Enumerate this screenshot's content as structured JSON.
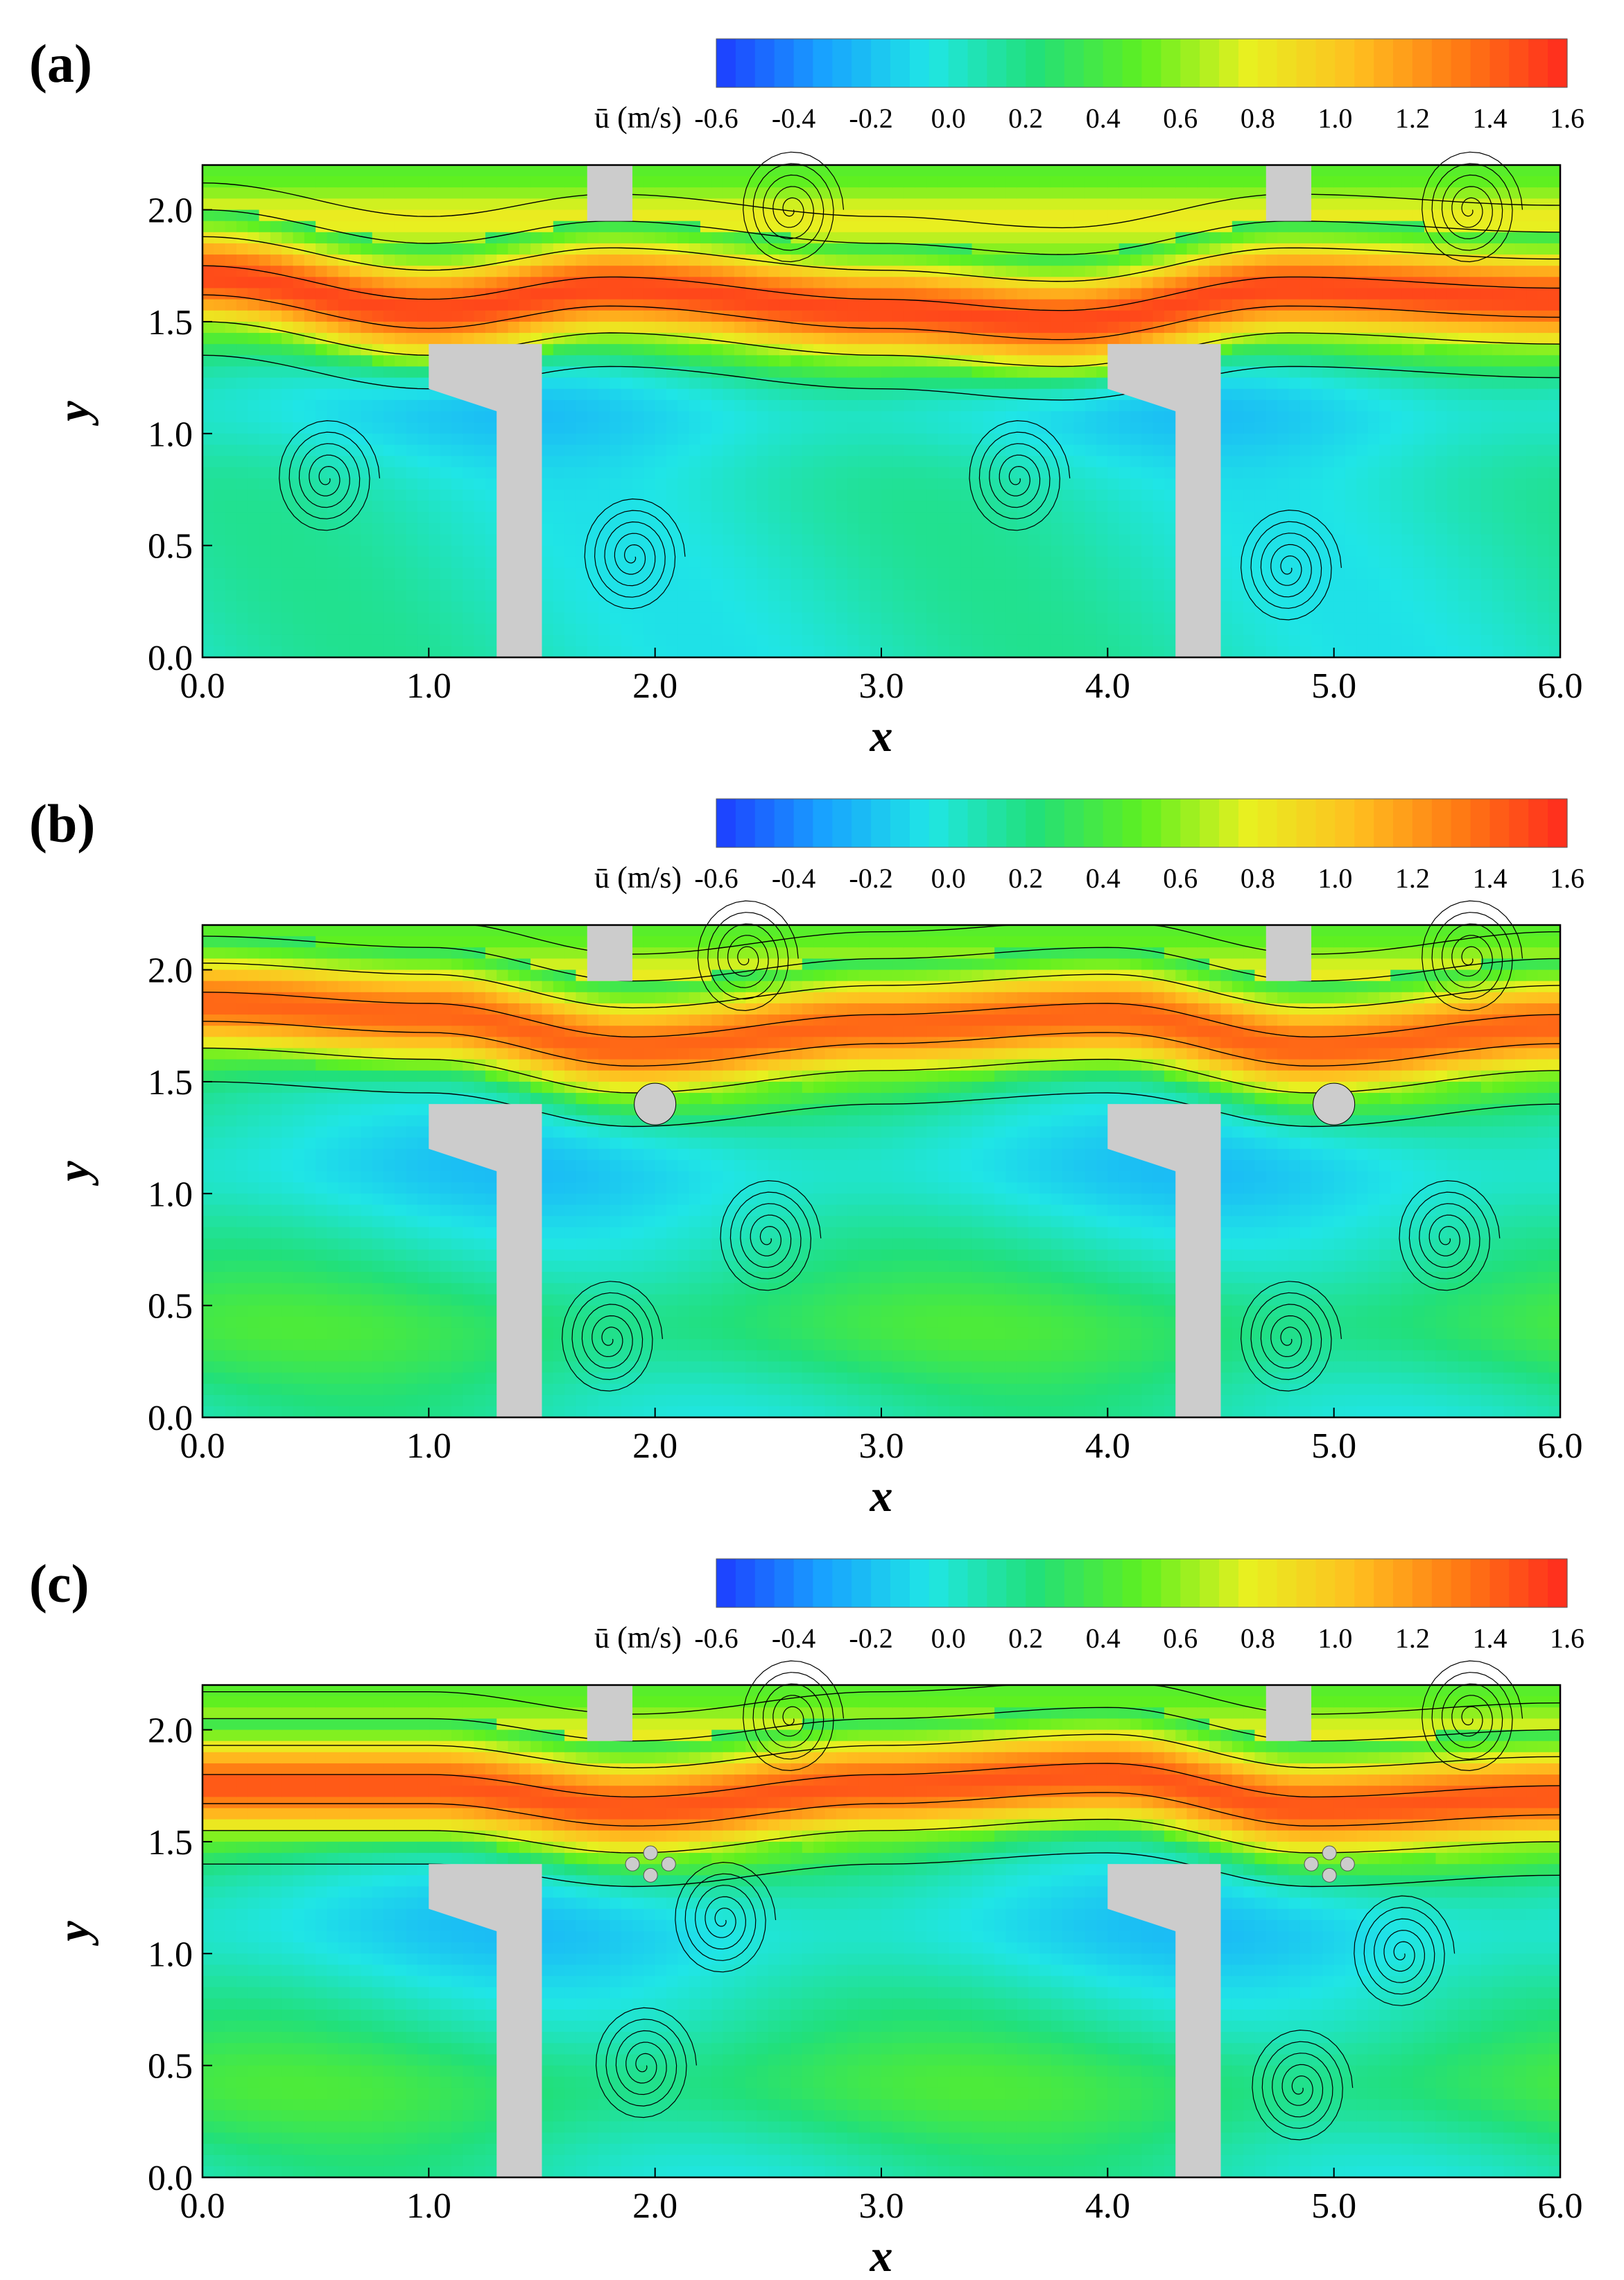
{
  "chart_data": [
    {
      "type": "heatmap",
      "panel_label": "(a)",
      "xlabel": "x",
      "ylabel": "y",
      "xlim": [
        0.0,
        6.0
      ],
      "ylim": [
        0.0,
        2.2
      ],
      "xticks": [
        "0.0",
        "1.0",
        "2.0",
        "3.0",
        "4.0",
        "5.0",
        "6.0"
      ],
      "yticks": [
        "0.0",
        "0.5",
        "1.0",
        "1.5",
        "2.0"
      ],
      "colorbar": {
        "label": "ū (m/s)",
        "range": [
          -0.6,
          1.6
        ],
        "ticks": [
          "-0.6",
          "-0.4",
          "-0.2",
          "0.0",
          "0.2",
          "0.4",
          "0.6",
          "0.8",
          "1.0",
          "1.2",
          "1.4",
          "1.6"
        ],
        "colormap": [
          "#1e3cff",
          "#18a2ff",
          "#20e6e6",
          "#22e07a",
          "#5ff020",
          "#e8f020",
          "#ffc020",
          "#ff7a14",
          "#ff2a1e"
        ]
      },
      "streamlines": true,
      "solid_color": "#cccccc",
      "jet_band": [
        [
          0.0,
          1.7
        ],
        [
          1.0,
          1.55
        ],
        [
          1.8,
          1.65
        ],
        [
          3.0,
          1.55
        ],
        [
          3.8,
          1.5
        ],
        [
          4.8,
          1.65
        ],
        [
          6.0,
          1.6
        ]
      ],
      "jet_peak": 1.5,
      "vortices": [
        [
          0.55,
          0.8
        ],
        [
          1.9,
          0.45
        ],
        [
          3.6,
          0.8
        ],
        [
          4.8,
          0.4
        ],
        [
          2.6,
          2.0
        ],
        [
          5.6,
          2.0
        ]
      ]
    },
    {
      "type": "heatmap",
      "panel_label": "(b)",
      "xlabel": "x",
      "ylabel": "y",
      "xlim": [
        0.0,
        6.0
      ],
      "ylim": [
        0.0,
        2.2
      ],
      "xticks": [
        "0.0",
        "1.0",
        "2.0",
        "3.0",
        "4.0",
        "5.0",
        "6.0"
      ],
      "yticks": [
        "0.0",
        "0.5",
        "1.0",
        "1.5",
        "2.0"
      ],
      "colorbar": {
        "label": "ū (m/s)",
        "range": [
          -0.6,
          1.6
        ],
        "ticks": [
          "-0.6",
          "-0.4",
          "-0.2",
          "0.0",
          "0.2",
          "0.4",
          "0.6",
          "0.8",
          "1.0",
          "1.2",
          "1.4",
          "1.6"
        ],
        "colormap": [
          "#1e3cff",
          "#18a2ff",
          "#20e6e6",
          "#22e07a",
          "#5ff020",
          "#e8f020",
          "#ffc020",
          "#ff7a14",
          "#ff2a1e"
        ]
      },
      "streamlines": true,
      "solid_color": "#cccccc",
      "jet_band": [
        [
          0.0,
          1.85
        ],
        [
          1.0,
          1.8
        ],
        [
          1.9,
          1.65
        ],
        [
          3.0,
          1.75
        ],
        [
          4.0,
          1.8
        ],
        [
          4.9,
          1.65
        ],
        [
          6.0,
          1.75
        ]
      ],
      "jet_peak": 1.4,
      "vortices": [
        [
          1.8,
          0.35
        ],
        [
          2.5,
          0.8
        ],
        [
          4.8,
          0.35
        ],
        [
          5.5,
          0.8
        ],
        [
          2.4,
          2.05
        ],
        [
          5.6,
          2.05
        ]
      ]
    },
    {
      "type": "heatmap",
      "panel_label": "(c)",
      "xlabel": "x",
      "ylabel": "y",
      "xlim": [
        0.0,
        6.0
      ],
      "ylim": [
        0.0,
        2.2
      ],
      "xticks": [
        "0.0",
        "1.0",
        "2.0",
        "3.0",
        "4.0",
        "5.0",
        "6.0"
      ],
      "yticks": [
        "0.0",
        "0.5",
        "1.0",
        "1.5",
        "2.0"
      ],
      "colorbar": {
        "label": "ū (m/s)",
        "range": [
          -0.6,
          1.6
        ],
        "ticks": [
          "-0.6",
          "-0.4",
          "-0.2",
          "0.0",
          "0.2",
          "0.4",
          "0.6",
          "0.8",
          "1.0",
          "1.2",
          "1.4",
          "1.6"
        ],
        "colormap": [
          "#1e3cff",
          "#18a2ff",
          "#20e6e6",
          "#22e07a",
          "#5ff020",
          "#e8f020",
          "#ffc020",
          "#ff7a14",
          "#ff2a1e"
        ]
      },
      "streamlines": true,
      "solid_color": "#cccccc",
      "jet_band": [
        [
          0.0,
          1.75
        ],
        [
          1.0,
          1.75
        ],
        [
          1.9,
          1.65
        ],
        [
          3.0,
          1.75
        ],
        [
          4.0,
          1.8
        ],
        [
          4.9,
          1.65
        ],
        [
          6.0,
          1.7
        ]
      ],
      "jet_peak": 1.45,
      "vortices": [
        [
          1.95,
          0.5
        ],
        [
          2.3,
          1.15
        ],
        [
          4.85,
          0.4
        ],
        [
          5.3,
          1.0
        ],
        [
          2.6,
          2.05
        ],
        [
          5.6,
          2.05
        ]
      ]
    }
  ]
}
